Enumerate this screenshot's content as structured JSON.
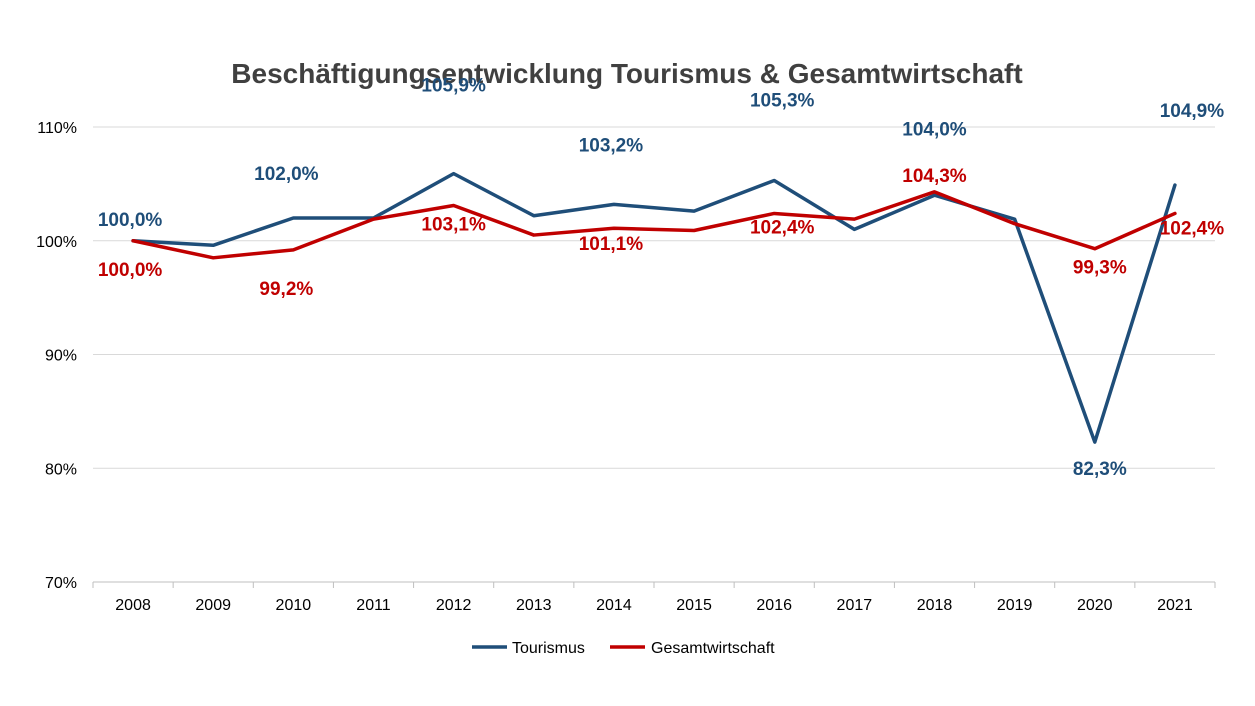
{
  "chart_data": {
    "type": "line",
    "title": "Beschäftigungsentwicklung Tourismus & Gesamtwirtschaft",
    "xlabel": "",
    "ylabel": "",
    "categories": [
      "2008",
      "2009",
      "2010",
      "2011",
      "2012",
      "2013",
      "2014",
      "2015",
      "2016",
      "2017",
      "2018",
      "2019",
      "2020",
      "2021"
    ],
    "ylim": [
      70,
      110
    ],
    "yticks": [
      70,
      80,
      90,
      100,
      110
    ],
    "ytick_labels": [
      "70%",
      "80%",
      "90%",
      "100%",
      "110%"
    ],
    "grid": true,
    "legend": "bottom",
    "series": [
      {
        "name": "Tourismus",
        "color": "#1F4E79",
        "values": [
          100.0,
          99.6,
          102.0,
          102.0,
          105.9,
          102.2,
          103.2,
          102.6,
          105.3,
          101.0,
          104.0,
          101.9,
          82.3,
          104.9
        ],
        "data_labels": {
          "0": "100,0%",
          "2": "102,0%",
          "4": "105,9%",
          "6": "103,2%",
          "8": "105,3%",
          "10": "104,0%",
          "12": "82,3%",
          "13": "104,9%"
        }
      },
      {
        "name": "Gesamtwirtschaft",
        "color": "#C00000",
        "values": [
          100.0,
          98.5,
          99.2,
          101.9,
          103.1,
          100.5,
          101.1,
          100.9,
          102.4,
          101.9,
          104.3,
          101.5,
          99.3,
          102.4
        ],
        "data_labels": {
          "0": "100,0%",
          "2": "99,2%",
          "4": "103,1%",
          "6": "101,1%",
          "8": "102,4%",
          "10": "104,3%",
          "12": "99,3%",
          "13": "102,4%"
        }
      }
    ]
  }
}
